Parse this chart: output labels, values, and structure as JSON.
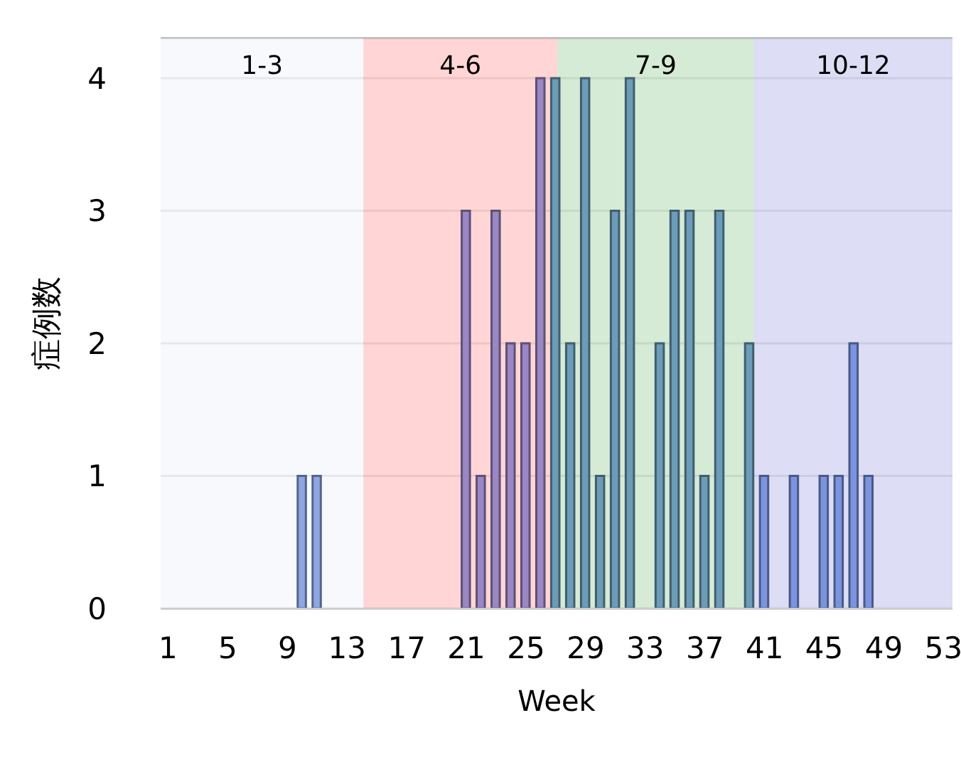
{
  "chart_data": {
    "type": "bar",
    "xlabel": "Week",
    "ylabel": "症例数",
    "x": [
      10,
      11,
      21,
      22,
      23,
      24,
      25,
      26,
      27,
      28,
      29,
      30,
      31,
      32,
      34,
      35,
      36,
      37,
      38,
      40,
      41,
      43,
      45,
      46,
      47,
      48
    ],
    "values": [
      1,
      1,
      3,
      1,
      3,
      2,
      2,
      4,
      4,
      2,
      4,
      1,
      3,
      4,
      2,
      3,
      3,
      1,
      3,
      2,
      1,
      1,
      1,
      1,
      2,
      1
    ],
    "colors": [
      "#8ea6e2",
      "#8ea6e2",
      "#9b87c4",
      "#9b87c4",
      "#9b87c4",
      "#9b87c4",
      "#9b87c4",
      "#9b87c4",
      "#6c9cb8",
      "#6c9cb8",
      "#6c9cb8",
      "#6c9cb8",
      "#6c9cb8",
      "#6c9cb8",
      "#6c9cb8",
      "#6c9cb8",
      "#6c9cb8",
      "#6c9cb8",
      "#6c9cb8",
      "#6c9cb8",
      "#7b94e0",
      "#7b94e0",
      "#7b94e0",
      "#7b94e0",
      "#7b94e0",
      "#7b94e0"
    ],
    "xlim": [
      0.5,
      53.6
    ],
    "xticks": [
      1,
      5,
      9,
      13,
      17,
      21,
      25,
      29,
      33,
      37,
      41,
      45,
      49,
      53
    ],
    "ylim": [
      0,
      4.3
    ],
    "yticks": [
      0,
      1,
      2,
      3,
      4
    ],
    "grid": "y",
    "bands": [
      {
        "axis": "x",
        "from": 0.5,
        "to": 14.1,
        "label": "1-3",
        "color": "#f5f7fc"
      },
      {
        "axis": "x",
        "from": 14.1,
        "to": 27.1,
        "label": "4-6",
        "color": "#ffcaca"
      },
      {
        "axis": "x",
        "from": 27.1,
        "to": 40.3,
        "label": "7-9",
        "color": "#cce6cc"
      },
      {
        "axis": "x",
        "from": 40.3,
        "to": 53.6,
        "label": "10-12",
        "color": "#d4d4f4"
      }
    ]
  }
}
